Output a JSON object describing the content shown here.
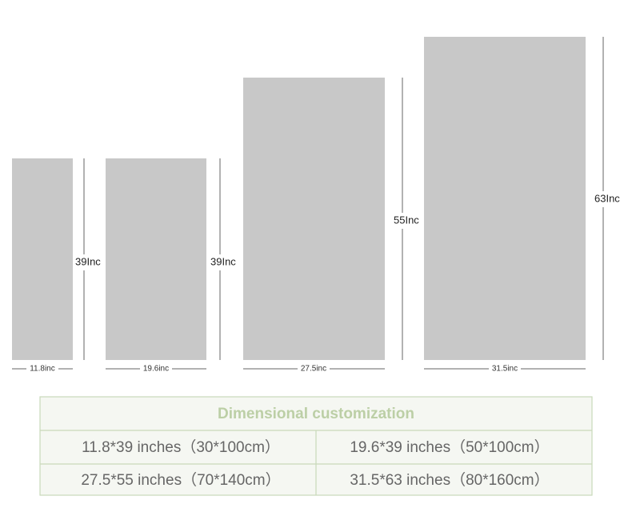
{
  "panels": [
    {
      "width_label": "11.8inc",
      "height_label": "39Inc"
    },
    {
      "width_label": "19.6inc",
      "height_label": "39Inc"
    },
    {
      "width_label": "27.5inc",
      "height_label": "55Inc"
    },
    {
      "width_label": "31.5inc",
      "height_label": "63Inc"
    }
  ],
  "table": {
    "title": "Dimensional customization",
    "rows": [
      [
        "11.8*39 inches（30*100cm）",
        "19.6*39 inches（50*100cm）"
      ],
      [
        "27.5*55 inches（70*140cm）",
        "31.5*63 inches（80*160cm）"
      ]
    ]
  }
}
